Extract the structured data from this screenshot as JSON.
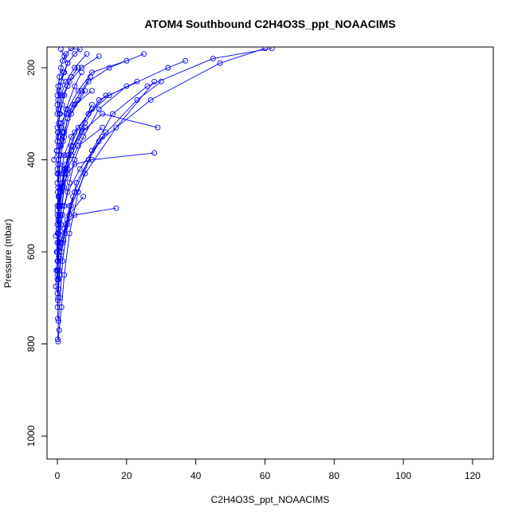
{
  "chart_data": {
    "type": "line",
    "title": "ATOM4 Southbound C2H4O3S_ppt_NOAACIMS",
    "xlabel": "C2H4O3S_ppt_NOAACIMS",
    "ylabel": "Pressure (mbar)",
    "xlim": [
      -3,
      126
    ],
    "ylim": [
      1050,
      155
    ],
    "y_reversed": true,
    "grid": false,
    "legend": "none",
    "x_ticks": [
      "0",
      "20",
      "40",
      "60",
      "80",
      "100",
      "120"
    ],
    "y_ticks": [
      "200",
      "400",
      "600",
      "800",
      "1000"
    ],
    "color": "#0000ff",
    "marker": "open-circle",
    "series": [
      {
        "x": [
          0.2,
          0.5,
          1.2,
          2.0,
          3.5,
          6.0,
          10.0,
          16.0,
          26.0,
          45.0,
          62.0
        ],
        "y": [
          795,
          770,
          720,
          650,
          560,
          470,
          380,
          300,
          240,
          180,
          158
        ]
      },
      {
        "x": [
          0.1,
          0.3,
          0.8,
          1.5,
          3.0,
          5.5,
          12.0,
          27.0,
          47.0,
          60.0
        ],
        "y": [
          790,
          750,
          700,
          620,
          540,
          450,
          360,
          270,
          190,
          158
        ]
      },
      {
        "x": [
          0.0,
          0.2,
          0.6,
          1.5,
          4.0,
          8.0,
          17.0,
          28.0
        ],
        "y": [
          720,
          680,
          640,
          580,
          500,
          430,
          330,
          230
        ]
      },
      {
        "x": [
          -0.5,
          0.0,
          0.5,
          2.0,
          5.0,
          9.0,
          14.0
        ],
        "y": [
          675,
          640,
          600,
          550,
          470,
          400,
          340
        ]
      },
      {
        "x": [
          0.0,
          0.4,
          1.0,
          2.5,
          5.0,
          17.0
        ],
        "y": [
          650,
          610,
          580,
          540,
          520,
          505
        ]
      },
      {
        "x": [
          0.1,
          0.3,
          0.9,
          1.8,
          3.4,
          7.5
        ],
        "y": [
          705,
          660,
          615,
          575,
          520,
          480
        ]
      },
      {
        "x": [
          0.0,
          0.2,
          0.5,
          1.0,
          2.0,
          3.0,
          6.0,
          13.0
        ],
        "y": [
          690,
          640,
          590,
          520,
          460,
          420,
          370,
          330
        ]
      },
      {
        "x": [
          -0.3,
          0.0,
          0.4,
          1.2,
          2.4,
          4.0,
          7.0,
          10.0
        ],
        "y": [
          640,
          600,
          560,
          500,
          440,
          380,
          330,
          280
        ]
      },
      {
        "x": [
          0.0,
          0.5,
          1.5,
          3.0,
          6.5,
          13.0,
          23.0,
          30.0
        ],
        "y": [
          620,
          570,
          520,
          470,
          420,
          350,
          270,
          230
        ]
      },
      {
        "x": [
          -0.2,
          0.1,
          0.6,
          1.4,
          3.0,
          5.0,
          10.0,
          28.0
        ],
        "y": [
          600,
          560,
          500,
          460,
          430,
          410,
          400,
          385
        ]
      },
      {
        "x": [
          0.0,
          0.2,
          0.8,
          2.0,
          4.5,
          8.0,
          12.0,
          32.0,
          37.0
        ],
        "y": [
          580,
          530,
          470,
          420,
          370,
          320,
          270,
          200,
          185
        ]
      },
      {
        "x": [
          -0.5,
          0.0,
          0.3,
          1.0,
          2.0,
          4.0,
          9.0,
          14.0
        ],
        "y": [
          565,
          520,
          480,
          430,
          390,
          350,
          300,
          260
        ]
      },
      {
        "x": [
          0.0,
          0.4,
          1.0,
          2.2,
          4.0,
          7.0,
          13.0,
          29.0
        ],
        "y": [
          540,
          500,
          460,
          420,
          380,
          340,
          300,
          330
        ]
      },
      {
        "x": [
          -1.0,
          -0.2,
          0.3,
          1.0,
          2.5,
          5.0,
          10.0
        ],
        "y": [
          400,
          380,
          350,
          320,
          300,
          280,
          250
        ]
      },
      {
        "x": [
          0.0,
          0.2,
          0.7,
          1.6,
          3.0,
          6.0,
          9.0,
          15.0,
          25.0
        ],
        "y": [
          500,
          460,
          410,
          360,
          310,
          270,
          230,
          200,
          170
        ]
      },
      {
        "x": [
          0.1,
          0.3,
          1.0,
          2.0,
          4.0,
          8.0
        ],
        "y": [
          470,
          430,
          390,
          350,
          300,
          250
        ]
      },
      {
        "x": [
          0.0,
          0.2,
          0.5,
          1.2,
          2.5,
          5.0,
          7.0
        ],
        "y": [
          450,
          410,
          370,
          330,
          290,
          240,
          210
        ]
      },
      {
        "x": [
          0.0,
          0.5,
          1.3,
          3.0,
          6.0,
          10.0,
          20.0
        ],
        "y": [
          430,
          390,
          340,
          290,
          250,
          210,
          185
        ]
      },
      {
        "x": [
          -0.2,
          0.1,
          0.6,
          1.5,
          3.5,
          7.0,
          12.0
        ],
        "y": [
          380,
          340,
          300,
          260,
          230,
          200,
          175
        ]
      },
      {
        "x": [
          0.0,
          0.3,
          1.0,
          2.5,
          5.0,
          8.5
        ],
        "y": [
          330,
          290,
          260,
          230,
          200,
          170
        ]
      },
      {
        "x": [
          0.0,
          0.2,
          0.8,
          1.8,
          3.0,
          5.0,
          6.5,
          4.0
        ],
        "y": [
          300,
          270,
          240,
          210,
          190,
          170,
          160,
          158
        ]
      },
      {
        "x": [
          0.0,
          0.4,
          1.2,
          2.0,
          3.0,
          2.0,
          1.0
        ],
        "y": [
          280,
          250,
          230,
          210,
          190,
          175,
          160
        ]
      },
      {
        "x": [
          0.0,
          0.2,
          0.6,
          1.0,
          1.5,
          2.5,
          4.0
        ],
        "y": [
          260,
          240,
          220,
          200,
          185,
          170,
          158
        ]
      },
      {
        "x": [
          0.1,
          0.5,
          1.0,
          2.0,
          3.0,
          5.0,
          9.0,
          15.0,
          23.0
        ],
        "y": [
          560,
          520,
          470,
          430,
          390,
          340,
          300,
          260,
          230
        ]
      },
      {
        "x": [
          0.0,
          0.3,
          0.8,
          1.5,
          2.5,
          4.0,
          6.0,
          10.0
        ],
        "y": [
          600,
          550,
          500,
          460,
          410,
          370,
          330,
          290
        ]
      },
      {
        "x": [
          0.0,
          0.1,
          0.4,
          1.0,
          2.0,
          3.5,
          5.0,
          7.5,
          12.0,
          20.0
        ],
        "y": [
          660,
          620,
          580,
          540,
          500,
          450,
          400,
          350,
          290,
          240
        ]
      },
      {
        "x": [
          0.1,
          0.2,
          0.6,
          1.2,
          2.0,
          2.8,
          3.5,
          4.5
        ],
        "y": [
          745,
          700,
          650,
          600,
          560,
          530,
          500,
          480
        ]
      },
      {
        "x": [
          0.0,
          0.5,
          1.5,
          2.5,
          4.0,
          6.0,
          8.0
        ],
        "y": [
          510,
          480,
          450,
          420,
          390,
          360,
          330
        ]
      },
      {
        "x": [
          0.0,
          0.3,
          1.0,
          2.0,
          3.0,
          4.5,
          7.0,
          9.5
        ],
        "y": [
          420,
          400,
          370,
          340,
          310,
          280,
          250,
          220
        ]
      },
      {
        "x": [
          0.0,
          0.2,
          0.4,
          0.8,
          1.4,
          2.0,
          3.0,
          4.0,
          6.0
        ],
        "y": [
          360,
          340,
          320,
          300,
          280,
          260,
          240,
          220,
          200
        ]
      }
    ]
  }
}
